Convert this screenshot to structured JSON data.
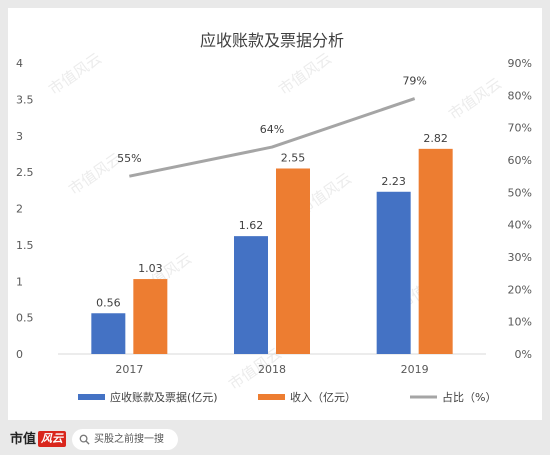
{
  "chart_data": {
    "type": "bar+line",
    "title": "应收账款及票据分析",
    "categories": [
      "2017",
      "2018",
      "2019"
    ],
    "series": [
      {
        "name": "应收账款及票据(亿元)",
        "kind": "bar",
        "axis": "left",
        "color": "#4472C4",
        "values": [
          0.56,
          1.62,
          2.23
        ],
        "labels": [
          "0.56",
          "1.62",
          "2.23"
        ]
      },
      {
        "name": "收入（亿元）",
        "kind": "bar",
        "axis": "left",
        "color": "#ED7D31",
        "values": [
          1.03,
          2.55,
          2.82
        ],
        "labels": [
          "1.03",
          "2.55",
          "2.82"
        ]
      },
      {
        "name": "占比（%）",
        "kind": "line",
        "axis": "right",
        "color": "#A5A5A5",
        "values": [
          55,
          64,
          79
        ],
        "labels": [
          "55%",
          "64%",
          "79%"
        ]
      }
    ],
    "y_left": {
      "range": [
        0,
        4
      ],
      "ticks": [
        0,
        0.5,
        1,
        1.5,
        2,
        2.5,
        3,
        3.5,
        4
      ],
      "tick_labels": [
        "0",
        "0.5",
        "1",
        "1.5",
        "2",
        "2.5",
        "3",
        "3.5",
        "4"
      ]
    },
    "y_right": {
      "range": [
        0,
        90
      ],
      "ticks": [
        0,
        10,
        20,
        30,
        40,
        50,
        60,
        70,
        80,
        90
      ],
      "tick_labels": [
        "0%",
        "10%",
        "20%",
        "30%",
        "40%",
        "50%",
        "60%",
        "70%",
        "80%",
        "90%"
      ]
    },
    "grid": false,
    "legend_position": "bottom"
  },
  "watermark_text": "市值风云",
  "footer": {
    "logo_text": "市值",
    "logo_mark": "风云",
    "search_placeholder": "买股之前搜一搜"
  }
}
